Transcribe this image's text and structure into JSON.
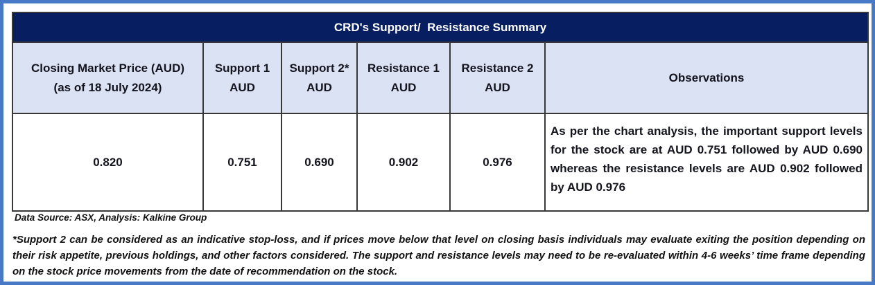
{
  "page": {
    "frame_color": "#4779C6",
    "background_color": "#FFFFFF"
  },
  "table": {
    "title": "CRD's Support/  Resistance Summary",
    "colors": {
      "title_bg": "#071F60",
      "title_text": "#FFFFFF",
      "header_bg": "#DBE2F3",
      "border": "#383838",
      "text": "#14141E"
    },
    "headers": [
      {
        "line1": "Closing Market Price (AUD)",
        "line2": "(as of 18 July 2024)"
      },
      {
        "line1": "Support 1",
        "line2": "AUD"
      },
      {
        "line1": "Support 2*",
        "line2": "AUD"
      },
      {
        "line1": "Resistance 1",
        "line2": "AUD"
      },
      {
        "line1": "Resistance 2",
        "line2": "AUD"
      },
      {
        "line1": "Observations",
        "line2": ""
      }
    ],
    "row": {
      "closing_price": "0.820",
      "support_1": "0.751",
      "support_2": "0.690",
      "resistance_1": "0.902",
      "resistance_2": "0.976",
      "observations": "As per the chart analysis, the important support levels for the stock are at AUD 0.751 followed by AUD 0.690 whereas the resistance levels are AUD 0.902 followed by AUD 0.976"
    }
  },
  "chart_data": {
    "type": "table",
    "title": "CRD's Support/ Resistance Summary",
    "columns": [
      "Closing Market Price (AUD) (as of 18 July 2024)",
      "Support 1 AUD",
      "Support 2* AUD",
      "Resistance 1 AUD",
      "Resistance 2 AUD",
      "Observations"
    ],
    "rows": [
      [
        "0.820",
        "0.751",
        "0.690",
        "0.902",
        "0.976",
        "As per the chart analysis, the important support levels for the stock are at AUD 0.751 followed by AUD 0.690 whereas the resistance levels are AUD 0.902 followed by AUD 0.976"
      ]
    ]
  },
  "footer": {
    "data_source": "Data Source: ASX, Analysis: Kalkine Group",
    "disclaimer": "*Support 2 can be considered as an indicative stop-loss, and if prices move below that level on closing basis individuals may evaluate exiting the position depending on their risk appetite, previous holdings, and other factors considered. The support and resistance levels may need to be re-evaluated within 4-6 weeks’ time frame depending on the stock price movements from the date of recommendation on the stock."
  }
}
